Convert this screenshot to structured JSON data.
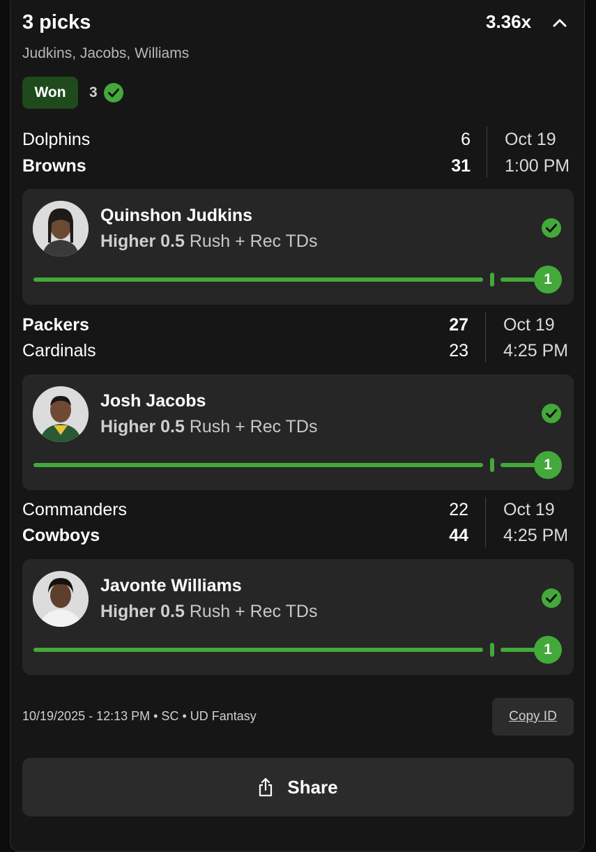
{
  "header": {
    "title": "3 picks",
    "multiplier": "3.36x",
    "subtitle": "Judkins, Jacobs, Williams",
    "status": "Won",
    "correct_count": "3"
  },
  "games": [
    {
      "team1": "Dolphins",
      "score1": "6",
      "team2": "Browns",
      "score2": "31",
      "date": "Oct 19",
      "time": "1:00 PM",
      "pick": {
        "player": "Quinshon Judkins",
        "direction": "Higher 0.5",
        "stat": "Rush + Rec TDs",
        "result": "1"
      }
    },
    {
      "team1": "Packers",
      "score1": "27",
      "team2": "Cardinals",
      "score2": "23",
      "date": "Oct 19",
      "time": "4:25 PM",
      "pick": {
        "player": "Josh Jacobs",
        "direction": "Higher 0.5",
        "stat": "Rush + Rec TDs",
        "result": "1"
      }
    },
    {
      "team1": "Commanders",
      "score1": "22",
      "team2": "Cowboys",
      "score2": "44",
      "date": "Oct 19",
      "time": "4:25 PM",
      "pick": {
        "player": "Javonte Williams",
        "direction": "Higher 0.5",
        "stat": "Rush + Rec TDs",
        "result": "1"
      }
    }
  ],
  "footer": {
    "meta": "10/19/2025 - 12:13 PM • SC • UD Fantasy",
    "copy_label": "Copy ID",
    "share_label": "Share"
  },
  "colors": {
    "accent": "#43a93b",
    "won_badge": "#1e4a1c",
    "card": "#262626",
    "background": "#161616"
  },
  "icons": [
    "chevron-up-icon",
    "check-circle-icon",
    "share-icon"
  ]
}
